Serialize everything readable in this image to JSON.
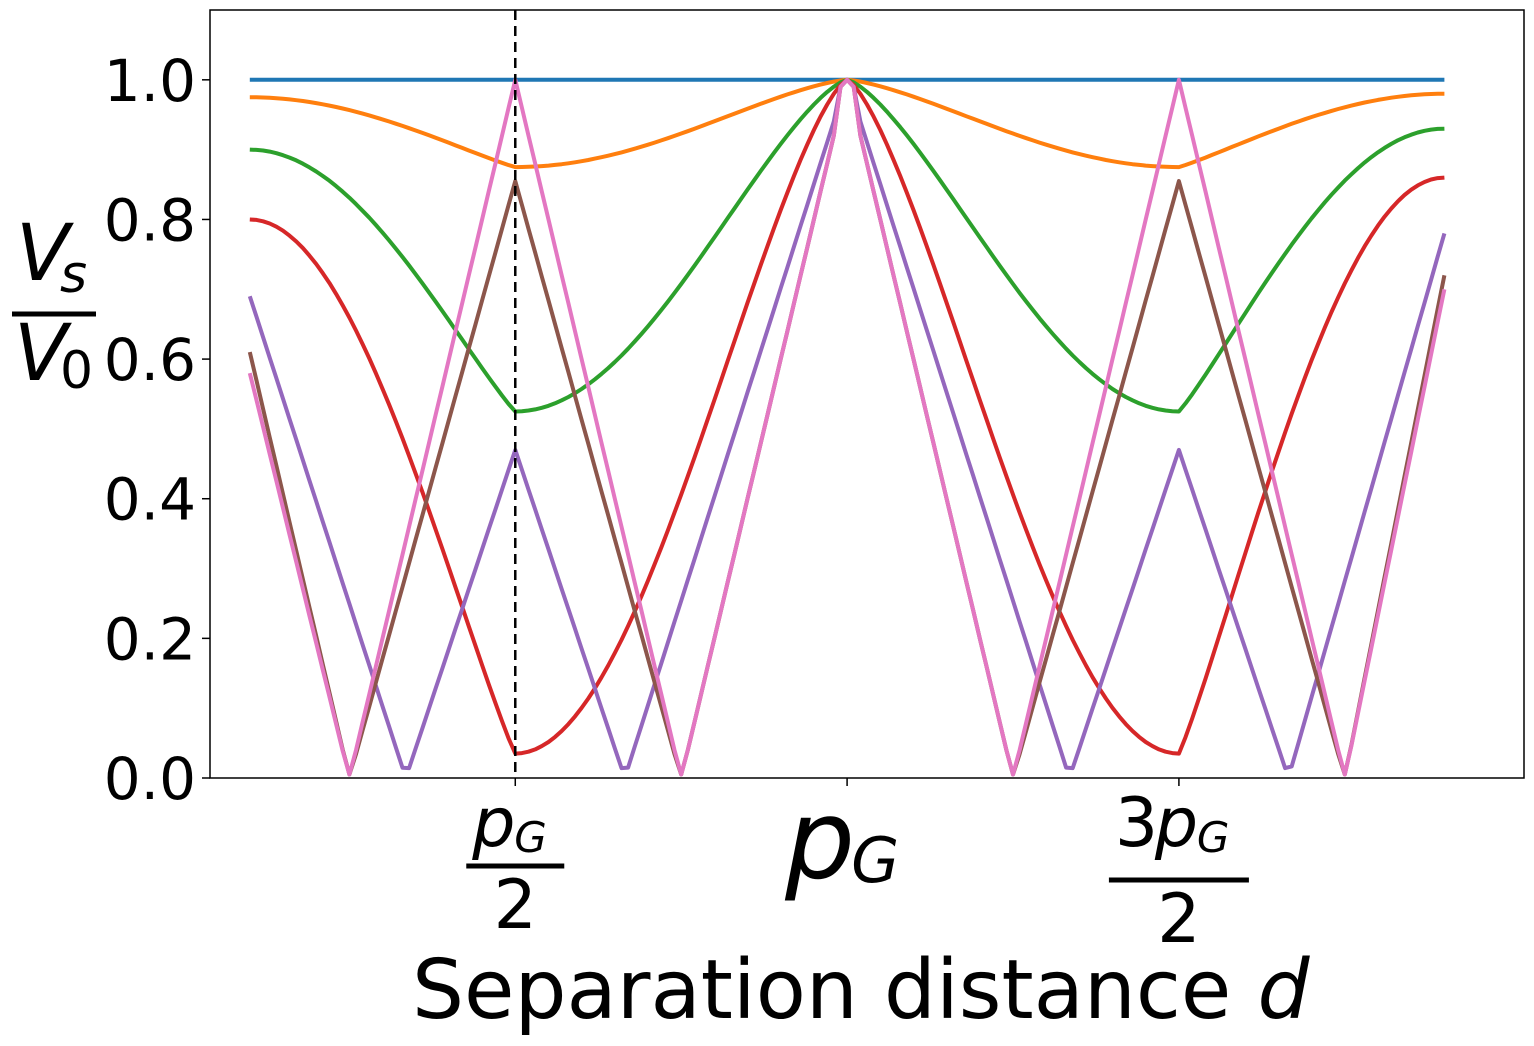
{
  "chart_data": {
    "type": "line",
    "xlabel": {
      "text": "Separation distance ",
      "var": "d"
    },
    "ylabel": {
      "num_base": "V",
      "num_sub": "s",
      "den_base": "V",
      "den_sub": "0"
    },
    "ylim": [
      0,
      1.1
    ],
    "xlim": [
      0.04,
      2.02
    ],
    "yticks": [
      {
        "value": 0.0,
        "label": "0.0"
      },
      {
        "value": 0.2,
        "label": "0.2"
      },
      {
        "value": 0.4,
        "label": "0.4"
      },
      {
        "value": 0.6,
        "label": "0.6"
      },
      {
        "value": 0.8,
        "label": "0.8"
      },
      {
        "value": 1.0,
        "label": "1.0"
      }
    ],
    "xticks": [
      {
        "value": 0.5,
        "num": "p",
        "num_sub": "G",
        "num_coef": "",
        "den": "2"
      },
      {
        "value": 1.0,
        "base": "p",
        "sub": "G"
      },
      {
        "value": 1.5,
        "num": "p",
        "num_sub": "G",
        "num_coef": "3",
        "den": "2"
      }
    ],
    "vline": {
      "x": 0.5,
      "style": "dashed",
      "color": "#000000"
    },
    "grid": false,
    "legend": "none",
    "x_start": 0.1,
    "x_end": 1.9,
    "series": [
      {
        "color": "#1f77b4",
        "minimum": 1.0,
        "zeros": [],
        "end_values": [
          1.0,
          1.0
        ]
      },
      {
        "color": "#ff7f0e",
        "minimum": 0.875,
        "zeros": [],
        "end_values": [
          0.975,
          0.98
        ]
      },
      {
        "color": "#2ca02c",
        "minimum": 0.525,
        "zeros": [],
        "end_values": [
          0.9,
          0.93
        ]
      },
      {
        "color": "#d62728",
        "minimum": 0.035,
        "zeros": [],
        "end_values": [
          0.8,
          0.86
        ]
      },
      {
        "color": "#9467bd",
        "minimum": 0.47,
        "zeros": [
          0.335,
          0.665,
          1.335,
          1.665
        ],
        "end_values": [
          0.69,
          0.78
        ]
      },
      {
        "color": "#8c564b",
        "minimum": 0.855,
        "zeros": [
          0.25,
          0.75,
          1.25,
          1.75
        ],
        "end_values": [
          0.61,
          0.72
        ]
      },
      {
        "color": "#e377c2",
        "minimum": 1.0,
        "zeros": [
          0.25,
          0.75,
          1.25,
          1.75
        ],
        "end_values": [
          0.58,
          0.7
        ]
      }
    ]
  }
}
